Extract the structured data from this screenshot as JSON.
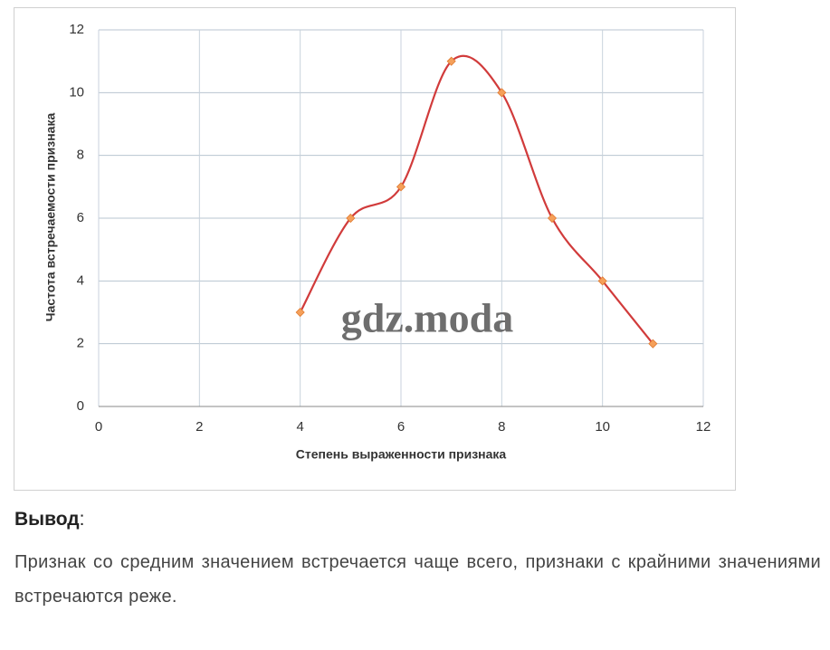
{
  "chart_data": {
    "type": "line",
    "smooth": true,
    "x_label": "Степень выраженности признака",
    "y_label": "Частота встречаемости признака",
    "x": [
      4,
      5,
      6,
      7,
      8,
      9,
      10,
      11
    ],
    "series": [
      {
        "color": "#d13b3b",
        "marker_color": "#f5a05a",
        "values": [
          3,
          6,
          7,
          11,
          10,
          6,
          4,
          2
        ]
      }
    ],
    "xlim": [
      0,
      12
    ],
    "xticks": [
      0,
      2,
      4,
      6,
      8,
      10,
      12
    ],
    "ylim": [
      0,
      12
    ],
    "yticks": [
      0,
      2,
      4,
      6,
      8,
      10,
      12
    ],
    "grid": true,
    "watermark": "gdz.moda"
  },
  "conclusion": {
    "heading": "Вывод",
    "heading_suffix": ":",
    "text": "Признак со средним значением встречается чаще всего, признаки с крайними значениями встречаются реже."
  }
}
